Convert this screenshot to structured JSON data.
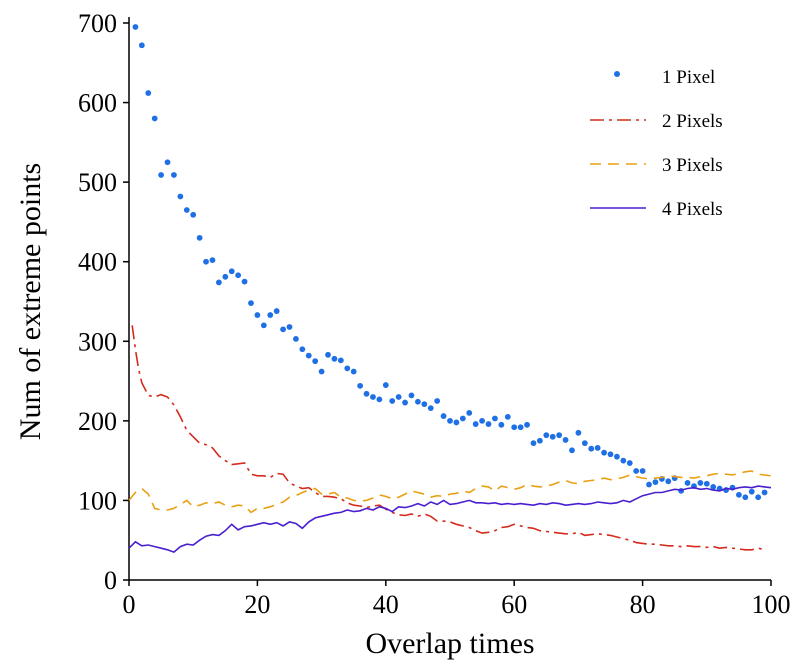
{
  "chart_data": {
    "type": "line",
    "xlabel": "Overlap times",
    "ylabel": "Num of extreme points",
    "xlim": [
      0,
      100
    ],
    "ylim": [
      0,
      700
    ],
    "xticks": [
      0,
      20,
      40,
      60,
      80,
      100
    ],
    "yticks": [
      0,
      100,
      200,
      300,
      400,
      500,
      600,
      700
    ],
    "grid": false,
    "legend_position": "top-right",
    "series": [
      {
        "name": "1 Pixel",
        "style": "dots",
        "color": "#1f6fe5",
        "x": [
          1,
          2,
          3,
          4,
          5,
          6,
          7,
          8,
          9,
          10,
          11,
          12,
          13,
          14,
          15,
          16,
          17,
          18,
          19,
          20,
          21,
          22,
          23,
          24,
          25,
          26,
          27,
          28,
          29,
          30,
          31,
          32,
          33,
          34,
          35,
          36,
          37,
          38,
          39,
          40,
          41,
          42,
          43,
          44,
          45,
          46,
          47,
          48,
          49,
          50,
          51,
          52,
          53,
          54,
          55,
          56,
          57,
          58,
          59,
          60,
          61,
          62,
          63,
          64,
          65,
          66,
          67,
          68,
          69,
          70,
          71,
          72,
          73,
          74,
          75,
          76,
          77,
          78,
          79,
          80,
          81,
          82,
          83,
          84,
          85,
          86,
          87,
          88,
          89,
          90,
          91,
          92,
          93,
          94,
          95,
          96,
          97,
          98,
          99
        ],
        "y": [
          695,
          672,
          612,
          580,
          509,
          525,
          509,
          482,
          465,
          459,
          430,
          400,
          402,
          374,
          381,
          388,
          383,
          375,
          348,
          333,
          320,
          333,
          338,
          315,
          318,
          303,
          290,
          282,
          275,
          262,
          283,
          278,
          276,
          266,
          262,
          244,
          234,
          230,
          227,
          245,
          225,
          230,
          223,
          232,
          224,
          221,
          216,
          225,
          206,
          200,
          198,
          203,
          210,
          196,
          200,
          196,
          203,
          195,
          205,
          192,
          192,
          195,
          172,
          175,
          182,
          180,
          182,
          176,
          163,
          185,
          172,
          165,
          166,
          160,
          158,
          155,
          150,
          147,
          137,
          137,
          120,
          123,
          127,
          124,
          128,
          112,
          122,
          118,
          122,
          121,
          117,
          115,
          113,
          116,
          107,
          104,
          111,
          104,
          110
        ]
      },
      {
        "name": "2 Pixels",
        "style": "dashdot",
        "color": "#d42b1e",
        "x": [
          0.5,
          1,
          1.5,
          2,
          3,
          4,
          5,
          6,
          7,
          8,
          9,
          10,
          11,
          12,
          13,
          14,
          15,
          16,
          17,
          18,
          19,
          20,
          21,
          22,
          23,
          24,
          25,
          26,
          27,
          28,
          29,
          30,
          31,
          32,
          33,
          34,
          35,
          36,
          37,
          38,
          39,
          40,
          41,
          42,
          43,
          44,
          45,
          46,
          47,
          48,
          49,
          50,
          51,
          52,
          53,
          54,
          55,
          56,
          57,
          58,
          59,
          60,
          61,
          62,
          63,
          64,
          65,
          66,
          67,
          68,
          69,
          70,
          71,
          72,
          73,
          74,
          75,
          76,
          77,
          78,
          79,
          80,
          81,
          82,
          83,
          84,
          85,
          86,
          87,
          88,
          89,
          90,
          91,
          92,
          93,
          94,
          95,
          96,
          97,
          98,
          99
        ],
        "y": [
          320,
          290,
          265,
          248,
          232,
          230,
          233,
          230,
          220,
          205,
          188,
          180,
          172,
          170,
          166,
          156,
          150,
          145,
          146,
          147,
          133,
          131,
          131,
          129,
          134,
          133,
          122,
          118,
          115,
          116,
          110,
          105,
          105,
          104,
          102,
          97,
          94,
          93,
          91,
          93,
          94,
          89,
          85,
          82,
          81,
          83,
          80,
          83,
          80,
          74,
          74,
          73,
          70,
          68,
          66,
          62,
          59,
          60,
          62,
          66,
          67,
          70,
          68,
          66,
          65,
          62,
          61,
          60,
          59,
          58,
          58,
          60,
          56,
          57,
          58,
          57,
          56,
          54,
          52,
          50,
          47,
          46,
          45,
          45,
          44,
          43,
          43,
          42,
          43,
          42,
          42,
          41,
          42,
          40,
          41,
          40,
          39,
          38,
          38,
          40,
          38
        ]
      },
      {
        "name": "3 Pixels",
        "style": "dashed",
        "color": "#e8a012",
        "x": [
          0,
          1,
          2,
          3,
          4,
          5,
          6,
          7,
          8,
          9,
          10,
          11,
          12,
          13,
          14,
          15,
          16,
          17,
          18,
          19,
          20,
          21,
          22,
          23,
          24,
          25,
          26,
          27,
          28,
          29,
          30,
          31,
          32,
          33,
          34,
          35,
          36,
          37,
          38,
          39,
          40,
          41,
          42,
          43,
          44,
          45,
          46,
          47,
          48,
          49,
          50,
          51,
          52,
          53,
          54,
          55,
          56,
          57,
          58,
          59,
          60,
          61,
          62,
          63,
          64,
          65,
          66,
          67,
          68,
          69,
          70,
          71,
          72,
          73,
          74,
          75,
          76,
          77,
          78,
          79,
          80,
          81,
          82,
          83,
          84,
          85,
          86,
          87,
          88,
          89,
          90,
          91,
          92,
          93,
          94,
          95,
          96,
          97,
          98,
          99,
          100
        ],
        "y": [
          100,
          110,
          115,
          108,
          90,
          88,
          88,
          90,
          95,
          100,
          92,
          94,
          97,
          96,
          98,
          94,
          92,
          94,
          93,
          85,
          90,
          90,
          92,
          95,
          98,
          104,
          106,
          110,
          113,
          115,
          108,
          108,
          110,
          104,
          103,
          100,
          99,
          100,
          103,
          107,
          105,
          102,
          104,
          108,
          112,
          110,
          108,
          104,
          106,
          105,
          108,
          109,
          112,
          110,
          115,
          118,
          117,
          112,
          118,
          116,
          114,
          116,
          120,
          118,
          117,
          118,
          120,
          123,
          125,
          122,
          121,
          124,
          125,
          126,
          128,
          126,
          127,
          129,
          132,
          130,
          128,
          127,
          128,
          129,
          131,
          130,
          129,
          129,
          128,
          130,
          131,
          133,
          134,
          133,
          132,
          134,
          136,
          137,
          133,
          132,
          131
        ]
      },
      {
        "name": "4 Pixels",
        "style": "solid",
        "color": "#4a1fd0",
        "x": [
          0,
          1,
          2,
          3,
          4,
          5,
          6,
          7,
          8,
          9,
          10,
          11,
          12,
          13,
          14,
          15,
          16,
          17,
          18,
          19,
          20,
          21,
          22,
          23,
          24,
          25,
          26,
          27,
          28,
          29,
          30,
          31,
          32,
          33,
          34,
          35,
          36,
          37,
          38,
          39,
          40,
          41,
          42,
          43,
          44,
          45,
          46,
          47,
          48,
          49,
          50,
          51,
          52,
          53,
          54,
          55,
          56,
          57,
          58,
          59,
          60,
          61,
          62,
          63,
          64,
          65,
          66,
          67,
          68,
          69,
          70,
          71,
          72,
          73,
          74,
          75,
          76,
          77,
          78,
          79,
          80,
          81,
          82,
          83,
          84,
          85,
          86,
          87,
          88,
          89,
          90,
          91,
          92,
          93,
          94,
          95,
          96,
          97,
          98,
          99,
          100
        ],
        "y": [
          40,
          48,
          43,
          44,
          42,
          40,
          38,
          35,
          42,
          45,
          44,
          50,
          55,
          57,
          56,
          62,
          70,
          63,
          67,
          68,
          70,
          72,
          70,
          72,
          68,
          73,
          71,
          65,
          73,
          78,
          80,
          82,
          84,
          85,
          88,
          86,
          87,
          90,
          88,
          92,
          90,
          86,
          92,
          91,
          93,
          96,
          93,
          98,
          95,
          100,
          95,
          96,
          98,
          100,
          97,
          97,
          96,
          97,
          95,
          96,
          95,
          96,
          95,
          94,
          96,
          95,
          97,
          96,
          94,
          95,
          96,
          95,
          96,
          98,
          97,
          96,
          97,
          100,
          98,
          102,
          106,
          108,
          110,
          110,
          112,
          114,
          113,
          115,
          116,
          114,
          115,
          113,
          112,
          115,
          114,
          116,
          117,
          116,
          118,
          117,
          116
        ]
      }
    ]
  }
}
